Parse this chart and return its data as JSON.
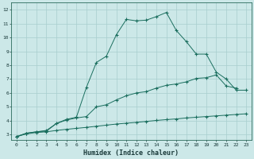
{
  "xlabel": "Humidex (Indice chaleur)",
  "bg_color": "#cce8e8",
  "grid_color": "#a8cece",
  "line_color": "#1a6e5e",
  "xlim": [
    -0.5,
    23.5
  ],
  "ylim": [
    2.6,
    12.5
  ],
  "xticks": [
    0,
    1,
    2,
    3,
    4,
    5,
    6,
    7,
    8,
    9,
    10,
    11,
    12,
    13,
    14,
    15,
    16,
    17,
    18,
    19,
    20,
    21,
    22,
    23
  ],
  "yticks": [
    3,
    4,
    5,
    6,
    7,
    8,
    9,
    10,
    11,
    12
  ],
  "line1_x": [
    0,
    1,
    2,
    3,
    4,
    5,
    6,
    7,
    8,
    9,
    10,
    11,
    12,
    13,
    14,
    15,
    16,
    17,
    18,
    19,
    20,
    21,
    22,
    23
  ],
  "line1_y": [
    2.85,
    3.1,
    3.2,
    3.25,
    3.8,
    4.1,
    4.25,
    6.4,
    8.2,
    8.65,
    10.2,
    11.3,
    11.2,
    11.25,
    11.5,
    11.8,
    10.5,
    9.7,
    8.8,
    8.8,
    7.5,
    7.0,
    6.2,
    6.2
  ],
  "line2_x": [
    0,
    1,
    2,
    3,
    4,
    5,
    6,
    7,
    8,
    9,
    10,
    11,
    12,
    13,
    14,
    15,
    16,
    17,
    18,
    19,
    20,
    21,
    22
  ],
  "line2_y": [
    2.85,
    3.1,
    3.2,
    3.3,
    3.8,
    4.05,
    4.2,
    4.3,
    5.0,
    5.15,
    5.5,
    5.8,
    6.0,
    6.1,
    6.35,
    6.55,
    6.65,
    6.8,
    7.05,
    7.1,
    7.3,
    6.5,
    6.35
  ],
  "line3_x": [
    0,
    1,
    2,
    3,
    4,
    5,
    6,
    7,
    8,
    9,
    10,
    11,
    12,
    13,
    14,
    15,
    16,
    17,
    18,
    19,
    20,
    21,
    22,
    23
  ],
  "line3_y": [
    2.85,
    3.05,
    3.15,
    3.2,
    3.3,
    3.38,
    3.45,
    3.52,
    3.6,
    3.68,
    3.76,
    3.82,
    3.88,
    3.95,
    4.02,
    4.08,
    4.13,
    4.2,
    4.25,
    4.3,
    4.35,
    4.4,
    4.45,
    4.5
  ]
}
